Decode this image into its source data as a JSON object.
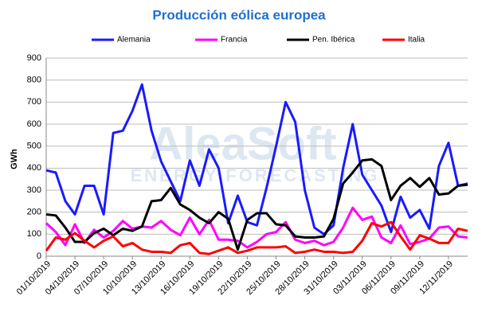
{
  "chart_data": {
    "type": "line",
    "title": "Producción eólica europea",
    "ylabel": "GWh",
    "watermark": [
      "AleaSoft",
      "ENERGY FORECASTING"
    ],
    "categories": [
      "01/10/2019",
      null,
      null,
      "04/10/2019",
      null,
      null,
      "07/10/2019",
      null,
      null,
      "10/10/2019",
      null,
      null,
      "13/10/2019",
      null,
      null,
      "16/10/2019",
      null,
      null,
      "19/10/2019",
      null,
      null,
      "22/10/2019",
      null,
      null,
      "25/10/2019",
      null,
      null,
      "28/10/2019",
      null,
      null,
      "31/10/2019",
      null,
      null,
      "03/11/2019",
      null,
      null,
      "06/11/2019",
      null,
      null,
      "09/11/2019",
      null,
      null,
      "12/11/2019",
      null,
      null
    ],
    "series": [
      {
        "name": "Alemania",
        "color": "#1a1aff",
        "values": [
          390,
          380,
          250,
          190,
          320,
          320,
          190,
          560,
          570,
          660,
          780,
          570,
          430,
          340,
          250,
          435,
          320,
          485,
          400,
          150,
          275,
          155,
          140,
          310,
          500,
          700,
          610,
          300,
          130,
          100,
          140,
          400,
          600,
          370,
          300,
          230,
          110,
          270,
          175,
          210,
          125,
          410,
          515,
          320,
          330
        ]
      },
      {
        "name": "Francia",
        "color": "#ff00ff",
        "values": [
          150,
          110,
          50,
          145,
          60,
          120,
          85,
          115,
          160,
          125,
          135,
          130,
          160,
          120,
          95,
          175,
          100,
          165,
          75,
          75,
          70,
          40,
          65,
          100,
          110,
          155,
          75,
          60,
          70,
          50,
          65,
          130,
          220,
          165,
          180,
          85,
          60,
          140,
          55,
          65,
          80,
          130,
          135,
          90,
          85
        ]
      },
      {
        "name": "Pen. Ibérica",
        "color": "#000000",
        "values": [
          190,
          185,
          130,
          65,
          65,
          105,
          125,
          95,
          125,
          115,
          135,
          250,
          255,
          310,
          235,
          210,
          175,
          150,
          200,
          170,
          30,
          165,
          195,
          195,
          145,
          140,
          90,
          85,
          85,
          90,
          170,
          330,
          380,
          435,
          440,
          410,
          255,
          320,
          355,
          315,
          355,
          280,
          285,
          320,
          325
        ]
      },
      {
        "name": "Italia",
        "color": "#ff0000",
        "values": [
          25,
          85,
          75,
          105,
          70,
          40,
          70,
          90,
          45,
          60,
          30,
          20,
          20,
          15,
          50,
          60,
          15,
          10,
          25,
          40,
          15,
          25,
          40,
          40,
          40,
          45,
          15,
          20,
          30,
          20,
          20,
          15,
          20,
          70,
          150,
          135,
          155,
          90,
          30,
          95,
          80,
          60,
          60,
          125,
          115
        ]
      }
    ],
    "ylim": [
      0,
      900
    ],
    "yticks": [
      0,
      100,
      200,
      300,
      400,
      500,
      600,
      700,
      800,
      900
    ],
    "grid": true
  }
}
